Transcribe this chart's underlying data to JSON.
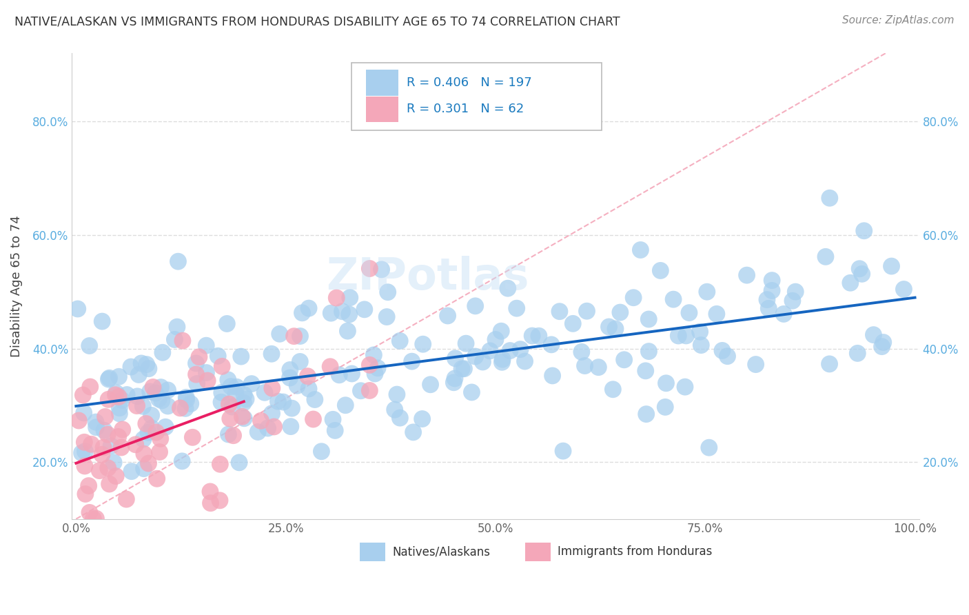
{
  "title": "NATIVE/ALASKAN VS IMMIGRANTS FROM HONDURAS DISABILITY AGE 65 TO 74 CORRELATION CHART",
  "source": "Source: ZipAtlas.com",
  "ylabel": "Disability Age 65 to 74",
  "xlabel": "",
  "xlim": [
    -0.005,
    1.005
  ],
  "ylim": [
    0.1,
    0.92
  ],
  "xticks": [
    0.0,
    0.25,
    0.5,
    0.75,
    1.0
  ],
  "xtick_labels": [
    "0.0%",
    "25.0%",
    "50.0%",
    "75.0%",
    "100.0%"
  ],
  "ytick_labels": [
    "20.0%",
    "40.0%",
    "60.0%",
    "80.0%"
  ],
  "ytick_values": [
    0.2,
    0.4,
    0.6,
    0.8
  ],
  "blue_color": "#a8cfee",
  "pink_color": "#f4a7b9",
  "blue_line_color": "#1565c0",
  "pink_line_color": "#e91e63",
  "dashed_line_color": "#f4a7b9",
  "R_blue": 0.406,
  "N_blue": 197,
  "R_pink": 0.301,
  "N_pink": 62,
  "blue_intercept": 0.315,
  "blue_slope": 0.17,
  "pink_intercept": 0.2,
  "pink_slope": 0.55,
  "dash_intercept": 0.1,
  "dash_slope": 0.85,
  "legend_label_blue": "Natives/Alaskans",
  "legend_label_pink": "Immigrants from Honduras",
  "watermark": "ZIPotlas",
  "background_color": "#ffffff",
  "grid_color": "#dddddd",
  "legend_text_color": "#1a7abf",
  "title_color": "#333333",
  "source_color": "#888888",
  "tick_color_y": "#5aade0",
  "tick_color_x": "#666666"
}
